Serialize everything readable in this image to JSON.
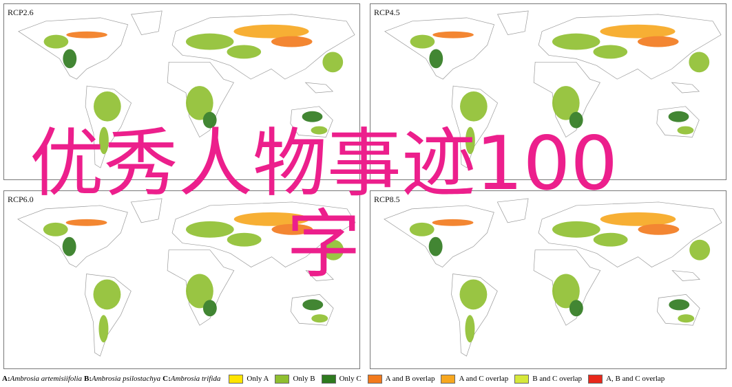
{
  "panels": [
    {
      "title": "RCP2.6"
    },
    {
      "title": "RCP4.5"
    },
    {
      "title": "RCP6.0"
    },
    {
      "title": "RCP8.5"
    }
  ],
  "legend": {
    "species": [
      {
        "key": "A:",
        "name": "Ambrosia artemisiifolia"
      },
      {
        "key": "B:",
        "name": "Ambrosia psilostachya"
      },
      {
        "key": "C:",
        "name": "Ambrosia trifida"
      }
    ],
    "categories": [
      {
        "label": "Only A",
        "color": "#ffe400"
      },
      {
        "label": "Only B",
        "color": "#8fbf2f"
      },
      {
        "label": "Only C",
        "color": "#2e7a1e"
      },
      {
        "label": "A and B overlap",
        "color": "#f27a1c"
      },
      {
        "label": "A and C overlap",
        "color": "#f7a71f"
      },
      {
        "label": "B and C overlap",
        "color": "#d6e83a"
      },
      {
        "label": "A, B and C overlap",
        "color": "#e8281b"
      }
    ]
  },
  "overlay": {
    "text": "优秀人物事迹100字"
  }
}
